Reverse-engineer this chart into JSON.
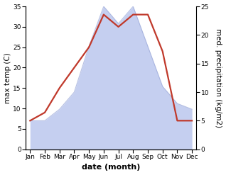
{
  "months": [
    "Jan",
    "Feb",
    "Mar",
    "Apr",
    "May",
    "Jun",
    "Jul",
    "Aug",
    "Sep",
    "Oct",
    "Nov",
    "Dec"
  ],
  "temperature": [
    7,
    9,
    15,
    20,
    25,
    33,
    30,
    33,
    33,
    24,
    7,
    7
  ],
  "precipitation": [
    5,
    5,
    7,
    10,
    18,
    25,
    22,
    25,
    18,
    11,
    8,
    7
  ],
  "temp_color": "#c0392b",
  "precip_fill_color": "#c5cff0",
  "precip_line_color": "#9aa8d8",
  "ylabel_left": "max temp (C)",
  "ylabel_right": "med. precipitation (kg/m2)",
  "xlabel": "date (month)",
  "ylim_left": [
    0,
    35
  ],
  "ylim_right": [
    0,
    25
  ],
  "yticks_left": [
    0,
    5,
    10,
    15,
    20,
    25,
    30,
    35
  ],
  "yticks_right": [
    0,
    5,
    10,
    15,
    20,
    25
  ],
  "bg_color": "#ffffff",
  "axis_fontsize": 7.5,
  "tick_fontsize": 6.5,
  "xlabel_fontsize": 8,
  "line_width": 1.6
}
